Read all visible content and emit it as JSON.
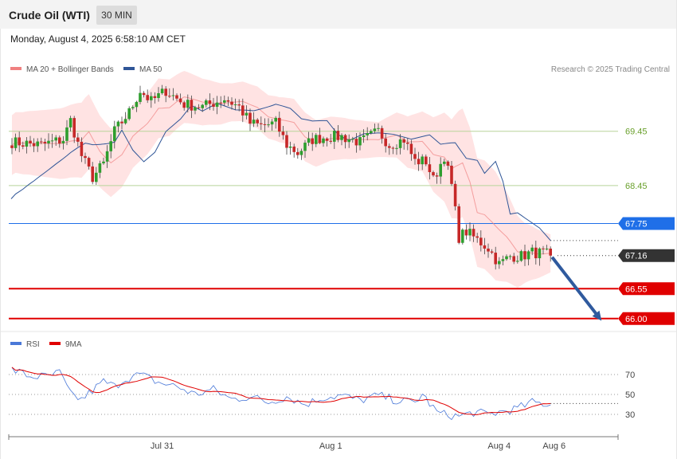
{
  "header": {
    "title": "Crude Oil (WTI)",
    "timeframe": "30 MIN",
    "date": "Monday, August 4, 2025 6:58:10 AM CET"
  },
  "legend_main": [
    {
      "label": "MA 20 + Bollinger Bands",
      "color": "#f08080"
    },
    {
      "label": "MA 50",
      "color": "#2f5597"
    }
  ],
  "credit": "Research © 2025 Trading Central",
  "legend_rsi": [
    {
      "label": "RSI",
      "color": "#4a78d8"
    },
    {
      "label": "9MA",
      "color": "#e00000"
    }
  ],
  "colors": {
    "bull": "#2e9e2e",
    "bear": "#c62828",
    "band": "#ffd9d9",
    "ma20": "#f08080",
    "ma50": "#2f5597",
    "support_resistance": "#e00000",
    "level_green": "#b8d49a",
    "pivot": "#1f6fe8",
    "arrow": "#2f5a9e"
  },
  "chart_data": [
    {
      "type": "candlestick",
      "title": "Crude Oil (WTI)",
      "timeframe": "30 MIN",
      "ylim": [
        65.85,
        70.4
      ],
      "x_ticks": [
        {
          "label": "Jul 31",
          "index": 41
        },
        {
          "label": "Aug 1",
          "index": 87
        },
        {
          "label": "Aug 4",
          "index": 133
        },
        {
          "label": "Aug 6",
          "index": 148
        }
      ],
      "levels": [
        {
          "label": "69.45",
          "value": 69.45,
          "style": "green",
          "box": false
        },
        {
          "label": "68.45",
          "value": 68.45,
          "style": "green",
          "box": false
        },
        {
          "label": "67.75",
          "value": 67.75,
          "style": "pivot",
          "box": true
        },
        {
          "label": "67.16",
          "value": 67.16,
          "style": "last",
          "box": true
        },
        {
          "label": "66.55",
          "value": 66.55,
          "style": "red",
          "box": true
        },
        {
          "label": "66.00",
          "value": 66.0,
          "style": "red",
          "box": true
        }
      ],
      "projection": {
        "from_index": 147,
        "from": 67.13,
        "to_index": 161,
        "to": 66.03
      },
      "close_anchors": [
        [
          0,
          69.25
        ],
        [
          8,
          69.2
        ],
        [
          14,
          69.3
        ],
        [
          16,
          69.65
        ],
        [
          19,
          69.0
        ],
        [
          22,
          68.6
        ],
        [
          25,
          68.85
        ],
        [
          28,
          69.45
        ],
        [
          32,
          69.8
        ],
        [
          35,
          70.2
        ],
        [
          38,
          70.0
        ],
        [
          42,
          70.2
        ],
        [
          47,
          69.95
        ],
        [
          52,
          69.9
        ],
        [
          58,
          70.05
        ],
        [
          62,
          69.9
        ],
        [
          65,
          69.6
        ],
        [
          68,
          69.55
        ],
        [
          72,
          69.6
        ],
        [
          75,
          69.2
        ],
        [
          78,
          69.05
        ],
        [
          82,
          69.3
        ],
        [
          86,
          69.35
        ],
        [
          90,
          69.35
        ],
        [
          95,
          69.25
        ],
        [
          100,
          69.45
        ],
        [
          103,
          69.2
        ],
        [
          107,
          69.3
        ],
        [
          110,
          68.9
        ],
        [
          113,
          68.9
        ],
        [
          115,
          68.55
        ],
        [
          118,
          69.0
        ],
        [
          120,
          68.45
        ],
        [
          122,
          67.5
        ],
        [
          124,
          67.6
        ],
        [
          127,
          67.45
        ],
        [
          130,
          67.3
        ],
        [
          133,
          67.0
        ],
        [
          136,
          67.15
        ],
        [
          139,
          67.15
        ],
        [
          142,
          67.22
        ],
        [
          145,
          67.2
        ],
        [
          147,
          67.16
        ]
      ],
      "series": [
        {
          "name": "MA 20 + Bollinger Bands",
          "band_width": [
            [
              0,
              0.55
            ],
            [
              20,
              0.7
            ],
            [
              30,
              0.6
            ],
            [
              40,
              0.55
            ],
            [
              60,
              0.35
            ],
            [
              80,
              0.45
            ],
            [
              100,
              0.32
            ],
            [
              112,
              0.55
            ],
            [
              122,
              1.0
            ],
            [
              132,
              1.0
            ],
            [
              140,
              0.55
            ],
            [
              147,
              0.35
            ]
          ]
        },
        {
          "name": "MA 50"
        }
      ]
    },
    {
      "type": "line",
      "name": "RSI",
      "ylim": [
        10,
        90
      ],
      "y_ticks": [
        70,
        50,
        30
      ],
      "rsi_anchors": [
        [
          0,
          75
        ],
        [
          5,
          68
        ],
        [
          10,
          68
        ],
        [
          13,
          72
        ],
        [
          16,
          50
        ],
        [
          19,
          45
        ],
        [
          22,
          54
        ],
        [
          25,
          63
        ],
        [
          28,
          58
        ],
        [
          31,
          66
        ],
        [
          35,
          70
        ],
        [
          40,
          62
        ],
        [
          45,
          58
        ],
        [
          50,
          50
        ],
        [
          55,
          55
        ],
        [
          60,
          45
        ],
        [
          65,
          48
        ],
        [
          70,
          42
        ],
        [
          75,
          48
        ],
        [
          80,
          40
        ],
        [
          85,
          47
        ],
        [
          90,
          49
        ],
        [
          95,
          44
        ],
        [
          100,
          49
        ],
        [
          105,
          44
        ],
        [
          110,
          42
        ],
        [
          112,
          50
        ],
        [
          116,
          32
        ],
        [
          118,
          30
        ],
        [
          122,
          28
        ],
        [
          126,
          32
        ],
        [
          130,
          30
        ],
        [
          134,
          33
        ],
        [
          138,
          36
        ],
        [
          142,
          42
        ],
        [
          147,
          40
        ]
      ]
    }
  ]
}
